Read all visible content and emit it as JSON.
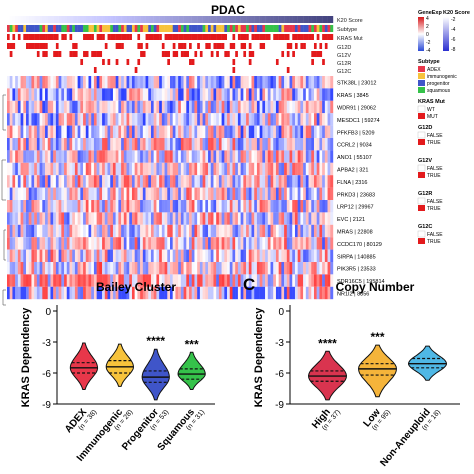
{
  "heatmap": {
    "title": "PDAC",
    "annotation_rows": [
      "K20 Score",
      "Subtype",
      "KRAS Mut",
      "G12D",
      "G12V",
      "G12R",
      "G12C"
    ],
    "genes": [
      "STK38L | 23012",
      "KRAS | 3845",
      "WDR91 | 29062",
      "MESDC1 | 59274",
      "PFKFB3 | 5209",
      "CCRL2 | 9034",
      "ANO1 | 55107",
      "APBA2 | 321",
      "FLNA | 2316",
      "PRKD3 | 23683",
      "LRP12 | 29967",
      "EVC | 2121",
      "MRAS | 22808",
      "CCDC170 | 80129",
      "SIRPA | 140885",
      "PIK3R5 | 23533",
      "SDR16C5 | 195814",
      "NR1I2 | 8856"
    ],
    "legend": {
      "geneexp_title": "GeneExp",
      "geneexp_ticks": [
        "4",
        "2",
        "0",
        "-2",
        "-4"
      ],
      "k20_title": "K20 Score",
      "k20_ticks": [
        "-2",
        "-4",
        "-6",
        "-8"
      ],
      "subtype_title": "Subtype",
      "subtype_items": [
        "ADEX",
        "immunogenic",
        "progenitor",
        "squamous"
      ],
      "kras_title": "KRAS Mut",
      "kras_items": [
        "WT",
        "MUT"
      ],
      "g12d_title": "G12D",
      "g12v_title": "G12V",
      "g12r_title": "G12R",
      "g12c_title": "G12C",
      "bool_items": [
        "FALSE",
        "TRUE"
      ]
    }
  },
  "colors": {
    "adex": "#e8374a",
    "immunogenic": "#f7c33c",
    "progenitor": "#3f55c9",
    "squamous": "#35c24a",
    "red": "#e31a1c",
    "blue": "#2540c9",
    "high": "#d9344f",
    "low": "#f5b43a",
    "noneuploid": "#4fb8e6"
  },
  "panel_c_letter": "C",
  "chart_data": [
    {
      "type": "violin",
      "title": "Bailey Cluster",
      "ylabel": "KRAS Dependency",
      "ylim": [
        -9,
        0
      ],
      "yticks": [
        "0",
        "-3",
        "-6",
        "-9"
      ],
      "categories": [
        "ADEX",
        "Immunogenic",
        "Progenitor",
        "Squamous"
      ],
      "n_labels": [
        "(n = 38)",
        "(n = 28)",
        "(n = 53)",
        "(n = 31)"
      ],
      "medians": [
        -5.5,
        -5.4,
        -6.4,
        -6.1
      ],
      "q1": [
        -6.0,
        -6.0,
        -6.9,
        -6.6
      ],
      "q3": [
        -5.0,
        -4.8,
        -5.8,
        -5.6
      ],
      "min": [
        -7.6,
        -7.3,
        -8.6,
        -7.6
      ],
      "max": [
        -3.1,
        -3.2,
        -3.7,
        -4.0
      ],
      "significance": [
        "",
        "",
        "****",
        "***"
      ],
      "colors": [
        "#e8374a",
        "#f7c33c",
        "#3f55c9",
        "#35c24a"
      ]
    },
    {
      "type": "violin",
      "title": "Copy Number",
      "ylabel": "KRAS Dependency",
      "ylim": [
        -9,
        0
      ],
      "yticks": [
        "0",
        "-3",
        "-6",
        "-9"
      ],
      "categories": [
        "High",
        "Low",
        "Non-Aneuploid"
      ],
      "n_labels": [
        "(n = 37)",
        "(n = 95)",
        "(n = 18)"
      ],
      "medians": [
        -6.3,
        -5.6,
        -5.1
      ],
      "q1": [
        -6.8,
        -6.2,
        -5.5
      ],
      "q3": [
        -5.8,
        -5.1,
        -4.6
      ],
      "min": [
        -8.6,
        -8.3,
        -6.7
      ],
      "max": [
        -3.9,
        -3.3,
        -3.4
      ],
      "significance": [
        "****",
        "***",
        ""
      ],
      "colors": [
        "#d9344f",
        "#f5b43a",
        "#4fb8e6"
      ]
    }
  ]
}
